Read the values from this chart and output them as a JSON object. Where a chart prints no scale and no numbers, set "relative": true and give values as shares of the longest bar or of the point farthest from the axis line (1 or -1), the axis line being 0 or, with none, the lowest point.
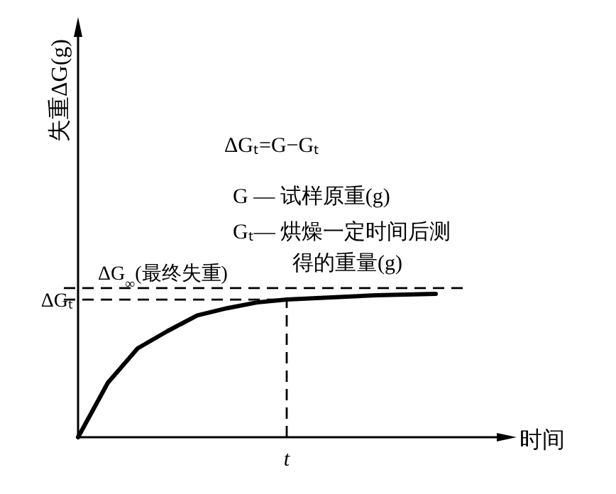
{
  "chart_data": {
    "type": "line",
    "relative": true,
    "xlabel": "时间",
    "categories": [
      null,
      null,
      null,
      null,
      null,
      null,
      null,
      null,
      null,
      null,
      null,
      null,
      null
    ],
    "series": [
      {
        "color": "#000000",
        "values": [
          0,
          0.38,
          0.62,
          0.74,
          0.85,
          0.9,
          0.94,
          0.96,
          0.97,
          0.98,
          0.99,
          0.995,
          1
        ]
      }
    ],
    "line_style": "solid",
    "marker": "none",
    "grid": false,
    "ref_lines": [
      {
        "axis": "y",
        "value": 1.04,
        "label": "ΔG$_{∞}$(最终失重)",
        "line_style": "dashed",
        "color": "#000000"
      },
      {
        "axis": "y",
        "value": 0.96,
        "label": "ΔGₜ",
        "line_style": "dashed",
        "color": "#000000"
      }
    ],
    "annotations": [
      "ΔGₜ=G−Gₜ",
      "G — 试样原重(g)",
      "Gₜ— 烘燥一定时间后测",
      "得的重量(g)",
      "t",
      "失重ΔG(g)"
    ]
  }
}
